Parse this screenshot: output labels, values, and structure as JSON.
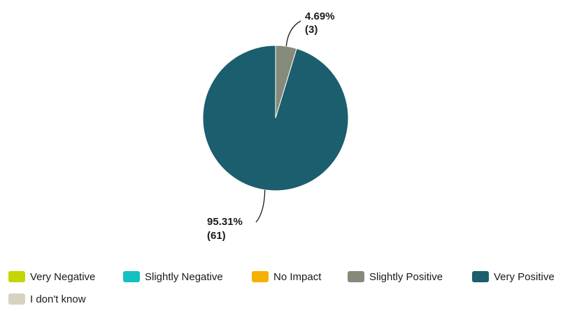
{
  "chart_data": {
    "type": "pie",
    "title": "",
    "legend_position": "bottom",
    "slices": [
      {
        "name": "Very Negative",
        "percent": 0,
        "count": 0,
        "color": "#c4d600"
      },
      {
        "name": "Slightly Negative",
        "percent": 0,
        "count": 0,
        "color": "#14c0c2"
      },
      {
        "name": "No Impact",
        "percent": 0,
        "count": 0,
        "color": "#f6b100"
      },
      {
        "name": "Slightly Positive",
        "percent": 4.69,
        "count": 3,
        "color": "#868a7b",
        "pct_label": "4.69%",
        "count_label": "(3)"
      },
      {
        "name": "Very Positive",
        "percent": 95.31,
        "count": 61,
        "color": "#1b5e6e",
        "pct_label": "95.31%",
        "count_label": "(61)"
      },
      {
        "name": "I don't know",
        "percent": 0,
        "count": 0,
        "color": "#d6d4c0"
      }
    ]
  }
}
